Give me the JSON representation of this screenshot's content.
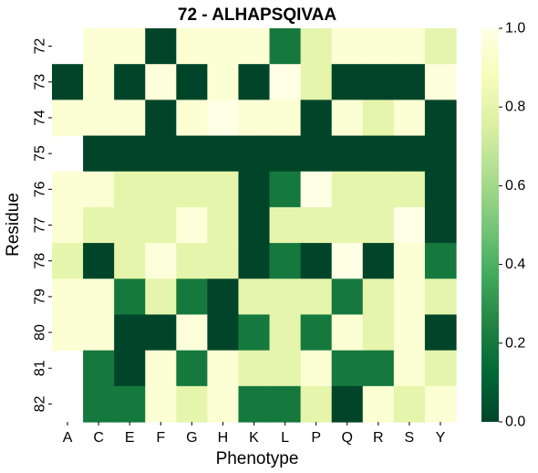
{
  "chart_data": {
    "type": "heatmap",
    "title": "72 - ALHAPSQIVAA",
    "xlabel": "Phenotype",
    "ylabel": "Residue",
    "x_categories": [
      "A",
      "C",
      "E",
      "F",
      "G",
      "H",
      "K",
      "L",
      "P",
      "Q",
      "R",
      "S",
      "Y"
    ],
    "y_categories": [
      "72",
      "73",
      "74",
      "75",
      "76",
      "77",
      "78",
      "79",
      "80",
      "81",
      "82"
    ],
    "values": [
      [
        null,
        0.95,
        0.95,
        0.0,
        0.95,
        0.95,
        0.95,
        0.2,
        0.8,
        0.95,
        0.95,
        0.95,
        0.8
      ],
      [
        0.0,
        0.95,
        0.0,
        0.97,
        0.0,
        0.95,
        0.0,
        1.0,
        0.8,
        0.0,
        0.0,
        0.0,
        0.97
      ],
      [
        0.95,
        0.95,
        0.95,
        0.0,
        0.95,
        1.0,
        0.95,
        0.95,
        0.0,
        0.95,
        0.8,
        0.95,
        0.0
      ],
      [
        null,
        0.0,
        0.0,
        0.0,
        0.0,
        0.0,
        0.0,
        0.0,
        0.0,
        0.0,
        0.0,
        0.0,
        0.0
      ],
      [
        0.95,
        0.95,
        0.8,
        0.8,
        0.8,
        0.8,
        0.0,
        0.2,
        1.0,
        0.8,
        0.8,
        0.8,
        0.0
      ],
      [
        0.95,
        0.8,
        0.8,
        0.8,
        0.97,
        0.8,
        0.0,
        0.8,
        0.8,
        0.8,
        0.8,
        1.0,
        0.0
      ],
      [
        0.8,
        0.0,
        0.8,
        0.97,
        0.8,
        0.8,
        0.0,
        0.2,
        0.0,
        1.0,
        0.0,
        0.95,
        0.2
      ],
      [
        0.95,
        0.95,
        0.2,
        0.8,
        0.2,
        0.0,
        0.8,
        0.8,
        0.8,
        0.2,
        0.8,
        0.95,
        0.8
      ],
      [
        0.95,
        0.95,
        0.0,
        0.0,
        0.97,
        0.0,
        0.2,
        0.8,
        0.2,
        0.95,
        0.8,
        0.95,
        0.0
      ],
      [
        null,
        0.2,
        0.0,
        0.95,
        0.2,
        0.95,
        0.8,
        0.8,
        0.95,
        0.2,
        0.2,
        0.95,
        0.8
      ],
      [
        null,
        0.2,
        0.2,
        0.95,
        0.8,
        0.95,
        0.2,
        0.2,
        0.8,
        0.0,
        0.95,
        0.8,
        0.95
      ]
    ],
    "colorbar": {
      "min": 0.0,
      "max": 1.0,
      "ticks": [
        "0.0",
        "0.2",
        "0.4",
        "0.6",
        "0.8",
        "1.0"
      ],
      "colormap": "YlGn_r",
      "colors": [
        "#004529",
        "#006837",
        "#238443",
        "#41ab5d",
        "#78c679",
        "#addd8e",
        "#d9f0a3",
        "#f7fcb9",
        "#ffffe5"
      ]
    }
  }
}
